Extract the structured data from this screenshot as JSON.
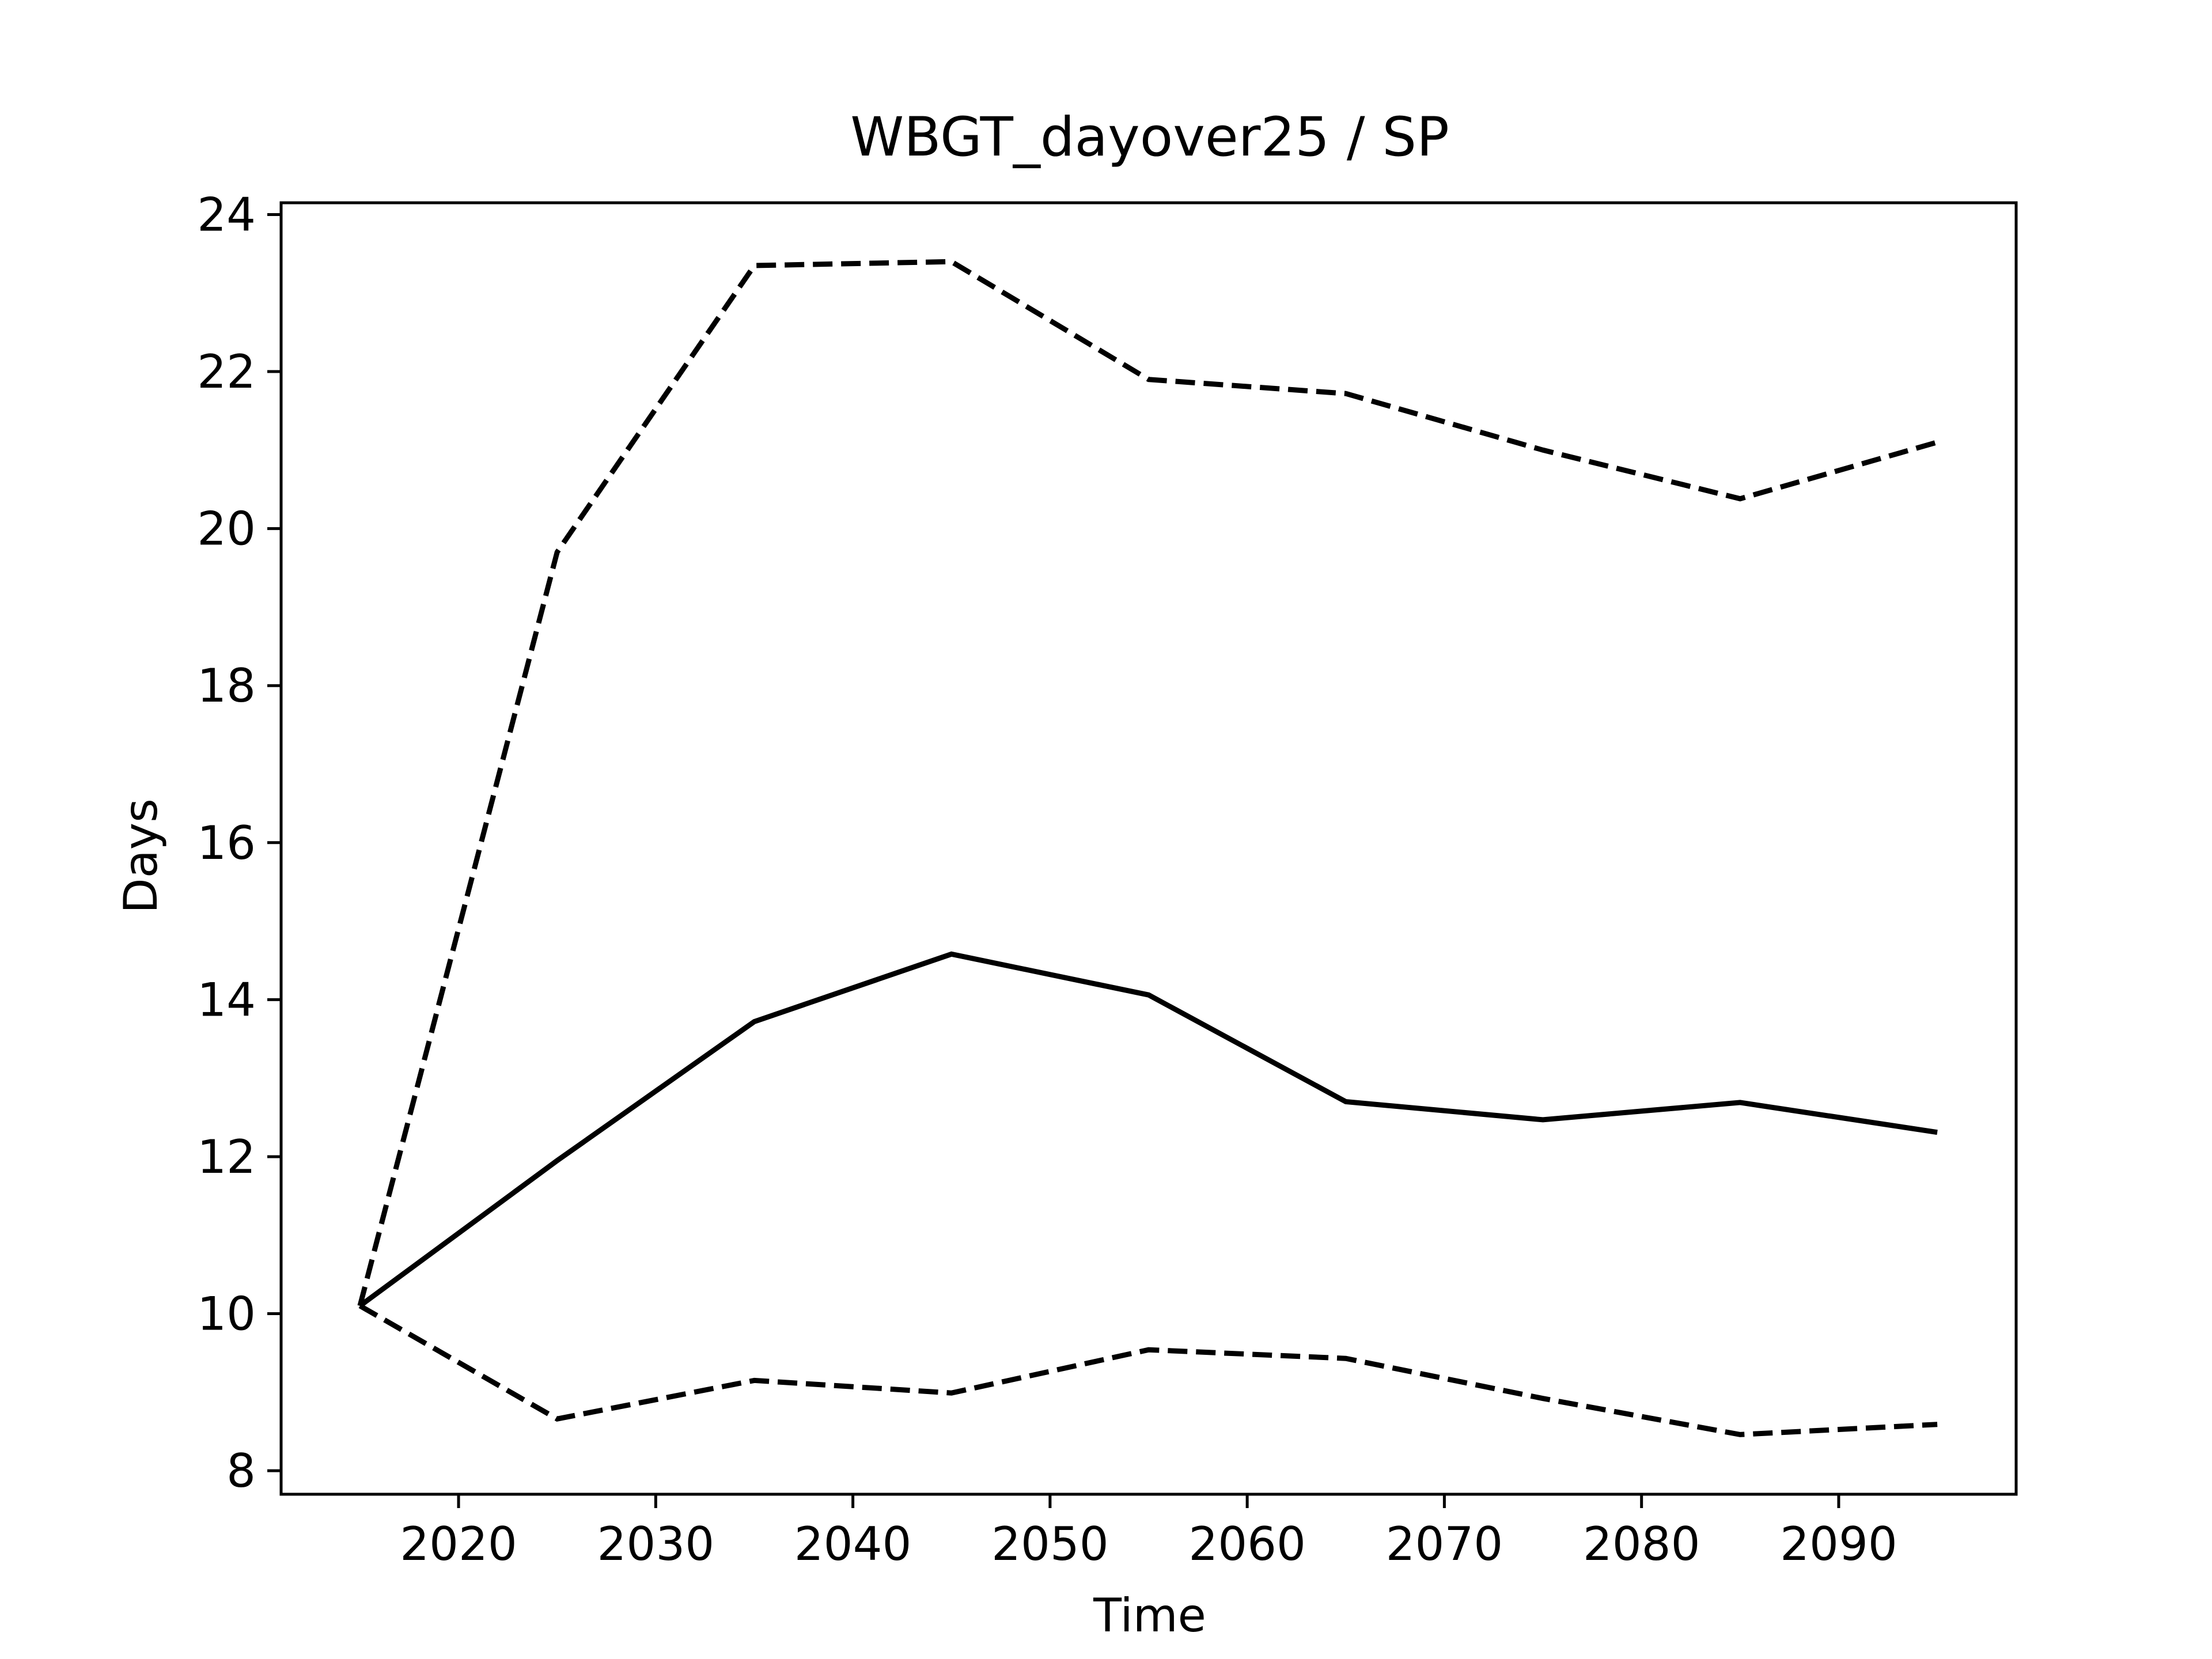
{
  "chart_data": {
    "type": "line",
    "title": "WBGT_dayover25 / SP",
    "xlabel": "Time",
    "ylabel": "Days",
    "xlim": [
      2011,
      2099
    ],
    "ylim": [
      7.7,
      24.15
    ],
    "xticks": [
      2020,
      2030,
      2040,
      2050,
      2060,
      2070,
      2080,
      2090
    ],
    "yticks": [
      8,
      10,
      12,
      14,
      16,
      18,
      20,
      22,
      24
    ],
    "grid": false,
    "x": [
      2015,
      2025,
      2035,
      2045,
      2055,
      2065,
      2075,
      2085,
      2095
    ],
    "series": [
      {
        "style": "solid",
        "color": "#000000",
        "values": [
          10.1,
          11.95,
          13.72,
          14.58,
          14.06,
          12.7,
          12.47,
          12.69,
          12.31
        ]
      },
      {
        "style": "dashed",
        "color": "#000000",
        "values": [
          10.1,
          19.7,
          23.35,
          23.4,
          21.9,
          21.72,
          21.0,
          20.38,
          21.1
        ]
      },
      {
        "style": "dashed",
        "color": "#000000",
        "values": [
          10.1,
          8.66,
          9.15,
          8.99,
          9.54,
          9.43,
          8.92,
          8.46,
          8.59
        ]
      }
    ]
  }
}
